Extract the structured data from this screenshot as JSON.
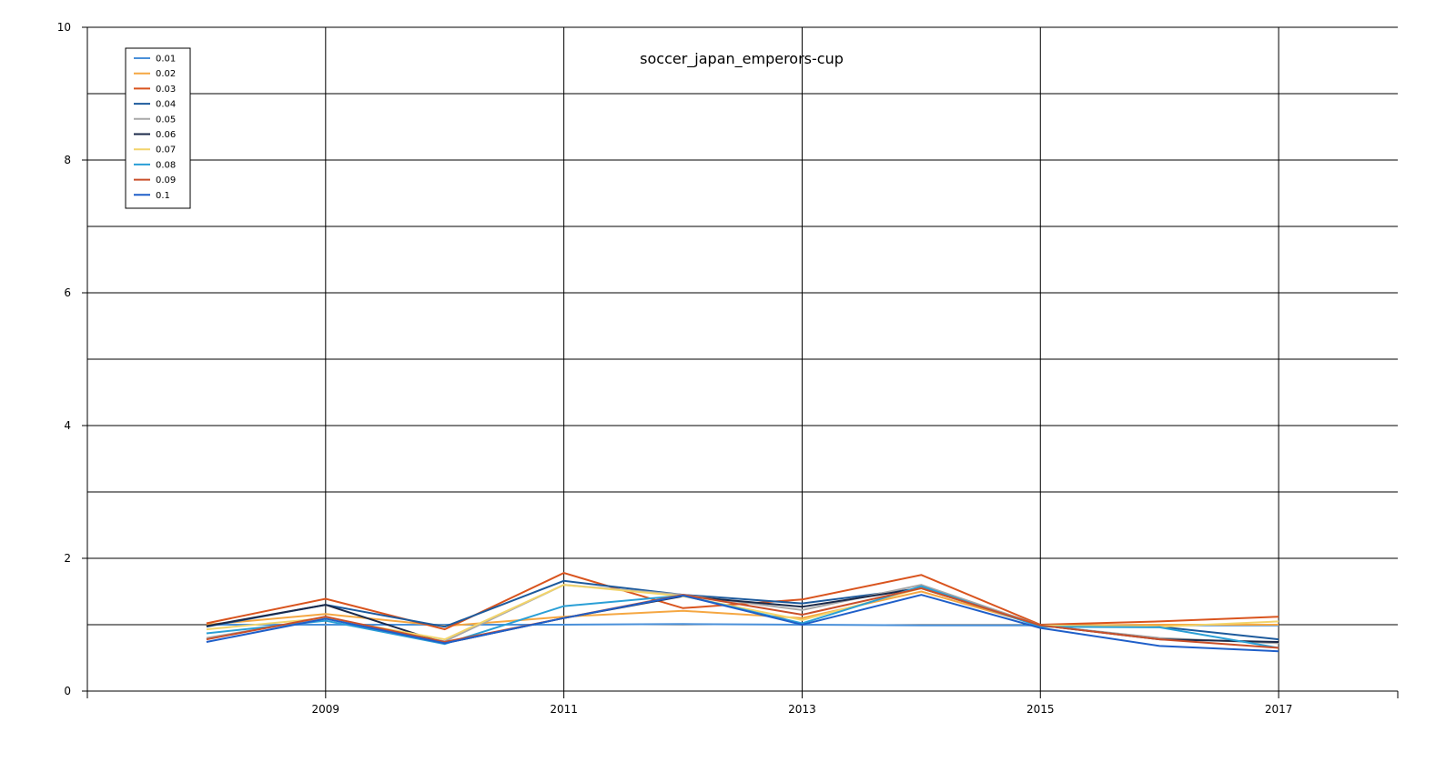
{
  "chart_data": {
    "type": "line",
    "title": "soccer_japan_emperors-cup",
    "xlabel": "",
    "ylabel": "",
    "xlim": [
      2007,
      2018
    ],
    "ylim": [
      0,
      10
    ],
    "x_ticks": [
      2009,
      2011,
      2013,
      2015,
      2017
    ],
    "x_tick_labels": [
      "2009",
      "2011",
      "2013",
      "2015",
      "2017"
    ],
    "y_ticks": [
      0,
      2,
      4,
      6,
      8,
      10
    ],
    "y_tick_labels": [
      "0",
      "2",
      "4",
      "6",
      "8",
      "10"
    ],
    "grid": true,
    "legend_position": "top-left",
    "x": [
      2008,
      2009,
      2010,
      2011,
      2012,
      2013,
      2014,
      2015,
      2016,
      2017
    ],
    "series": [
      {
        "name": "0.01",
        "color": "#4a90d9",
        "values": [
          1.0,
          1.0,
          1.0,
          1.0,
          1.01,
          1.0,
          0.99,
          0.99,
          0.99,
          0.99
        ]
      },
      {
        "name": "0.02",
        "color": "#f5a742",
        "values": [
          1.0,
          1.16,
          0.98,
          1.12,
          1.21,
          1.1,
          1.5,
          0.99,
          1.0,
          1.0
        ]
      },
      {
        "name": "0.03",
        "color": "#d9541e",
        "values": [
          1.02,
          1.39,
          0.93,
          1.78,
          1.25,
          1.38,
          1.75,
          1.0,
          1.05,
          1.12
        ]
      },
      {
        "name": "0.04",
        "color": "#1d5a9c",
        "values": [
          0.97,
          1.3,
          0.97,
          1.66,
          1.45,
          1.32,
          1.55,
          0.99,
          0.97,
          0.78
        ]
      },
      {
        "name": "0.05",
        "color": "#a8a8a8",
        "values": [
          0.8,
          1.1,
          0.75,
          1.6,
          1.45,
          1.22,
          1.6,
          0.99,
          0.8,
          0.72
        ]
      },
      {
        "name": "0.06",
        "color": "#1b2a4a",
        "values": [
          0.98,
          1.3,
          0.72,
          1.1,
          1.43,
          1.27,
          1.55,
          0.99,
          0.78,
          0.74
        ]
      },
      {
        "name": "0.07",
        "color": "#f2d46b",
        "values": [
          0.93,
          1.1,
          0.78,
          1.6,
          1.43,
          1.07,
          1.55,
          0.99,
          0.97,
          1.05
        ]
      },
      {
        "name": "0.08",
        "color": "#2a9fd6",
        "values": [
          0.87,
          1.06,
          0.71,
          1.28,
          1.44,
          1.02,
          1.58,
          0.97,
          0.96,
          0.65
        ]
      },
      {
        "name": "0.09",
        "color": "#c94f2a",
        "values": [
          0.78,
          1.12,
          0.74,
          1.1,
          1.45,
          1.15,
          1.55,
          0.99,
          0.78,
          0.65
        ]
      },
      {
        "name": "0.1",
        "color": "#1f5fc9",
        "values": [
          0.74,
          1.09,
          0.72,
          1.1,
          1.44,
          1.0,
          1.45,
          0.95,
          0.68,
          0.6
        ]
      }
    ]
  }
}
